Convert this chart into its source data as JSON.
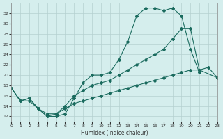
{
  "bg_color": "#d5eeed",
  "grid_color": "#b5d0d0",
  "line_color": "#1a6b5e",
  "xlabel": "Humidex (Indice chaleur)",
  "xlim": [
    0,
    23
  ],
  "ylim": [
    11,
    34
  ],
  "yticks": [
    12,
    14,
    16,
    18,
    20,
    22,
    24,
    26,
    28,
    30,
    32
  ],
  "xticks": [
    0,
    1,
    2,
    3,
    4,
    5,
    6,
    7,
    8,
    9,
    10,
    11,
    12,
    13,
    14,
    15,
    16,
    17,
    18,
    19,
    20,
    21,
    22,
    23
  ],
  "xtick_labels": [
    "0",
    "1",
    "2",
    "3",
    "4",
    "5",
    "6",
    "7",
    "8",
    "9",
    "10",
    "11",
    "12",
    "13",
    "14",
    "15",
    "16",
    "17",
    "18",
    "19",
    "20",
    "21",
    "22",
    "23"
  ],
  "line1_x": [
    0,
    1,
    2,
    3,
    4,
    5,
    6,
    7,
    8,
    9,
    10,
    11,
    12,
    13,
    14,
    15,
    16,
    17,
    18,
    19,
    20,
    21
  ],
  "line1_y": [
    17.5,
    15,
    15,
    13.5,
    12,
    12,
    12.5,
    15.5,
    18.5,
    20,
    20,
    20.5,
    23,
    26.5,
    31.5,
    33,
    33,
    32.5,
    33,
    31.5,
    25,
    20.5
  ],
  "line2_x": [
    0,
    1,
    2,
    3,
    4,
    5,
    6,
    7,
    8,
    9,
    10,
    11,
    12,
    13,
    14,
    15,
    16,
    17,
    18,
    19,
    20,
    21,
    23
  ],
  "line2_y": [
    17.5,
    15,
    15.5,
    13.5,
    12,
    12.5,
    14,
    16,
    17,
    18,
    18.5,
    19,
    20,
    21,
    22,
    23,
    24,
    25,
    27,
    29,
    29,
    21,
    19.5
  ],
  "line3_x": [
    0,
    1,
    2,
    3,
    4,
    5,
    6,
    7,
    8,
    9,
    10,
    11,
    12,
    13,
    14,
    15,
    16,
    17,
    18,
    19,
    20,
    21,
    22,
    23
  ],
  "line3_y": [
    17.5,
    15,
    15.5,
    13.5,
    12.5,
    12.5,
    13.5,
    14.5,
    15,
    15.5,
    16,
    16.5,
    17,
    17.5,
    18,
    18.5,
    19,
    19.5,
    20,
    20.5,
    21,
    21,
    21.5,
    19.5
  ],
  "marker_size": 2,
  "line_width": 0.8,
  "tick_fontsize": 4.5,
  "xlabel_fontsize": 5.5
}
